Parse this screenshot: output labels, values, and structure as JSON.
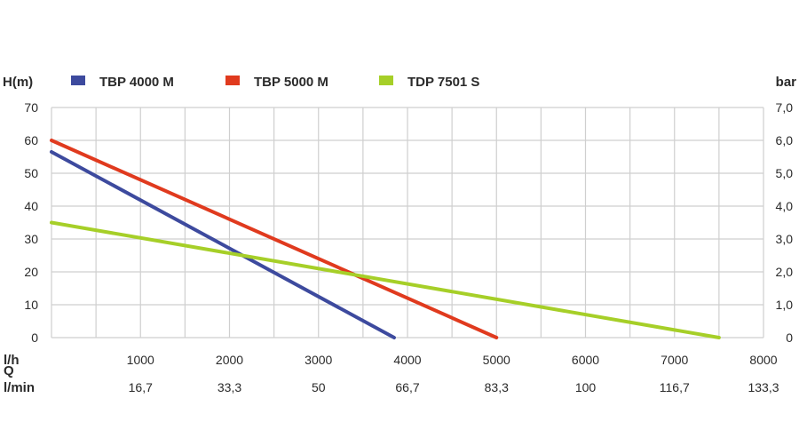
{
  "chart_data": {
    "type": "line",
    "left_axis_label": "H(m)",
    "right_axis_label": "bar",
    "y_ticks": [
      "0",
      "10",
      "20",
      "30",
      "40",
      "50",
      "60",
      "70"
    ],
    "y_right_ticks": [
      "0",
      "1,0",
      "2,0",
      "3,0",
      "4,0",
      "5,0",
      "6,0",
      "7,0"
    ],
    "ylim": [
      0,
      70
    ],
    "xlim": [
      0,
      8000
    ],
    "x_label": "l/h",
    "x_ticks": [
      "1000",
      "2000",
      "3000",
      "4000",
      "5000",
      "6000",
      "7000",
      "8000"
    ],
    "q_label": "Q",
    "x2_label": "l/min",
    "x2_ticks": [
      "16,7",
      "33,3",
      "50",
      "66,7",
      "83,3",
      "100",
      "116,7",
      "133,3"
    ],
    "grid": true,
    "legend_position": "top",
    "series": [
      {
        "name": "TBP 4000 M",
        "color": "#3d4a9e",
        "points": [
          [
            0,
            56.5
          ],
          [
            3850,
            0
          ]
        ]
      },
      {
        "name": "TBP 5000 M",
        "color": "#e03a1e",
        "points": [
          [
            0,
            60
          ],
          [
            5000,
            0
          ]
        ]
      },
      {
        "name": "TDP 7501 S",
        "color": "#a6cf28",
        "points": [
          [
            0,
            35
          ],
          [
            7500,
            0
          ]
        ]
      }
    ]
  }
}
